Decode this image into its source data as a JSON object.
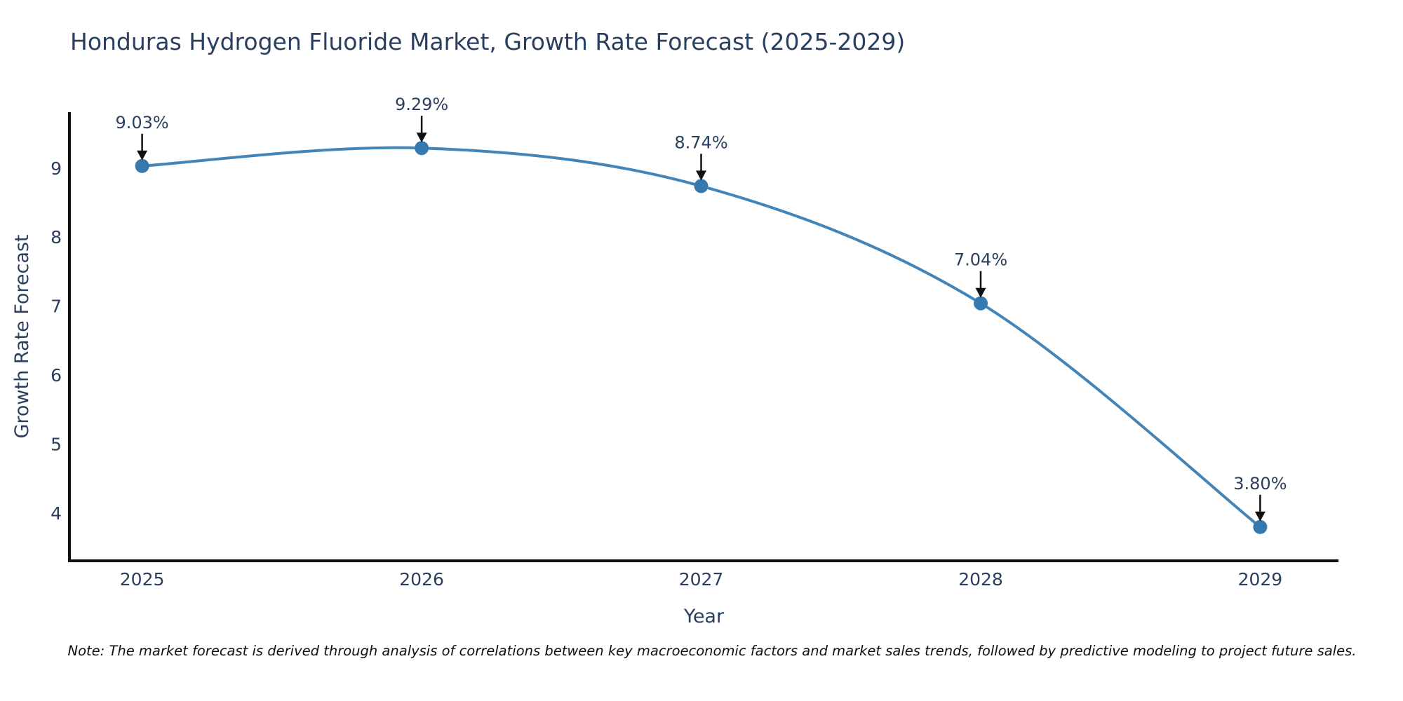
{
  "page": {
    "title": "Honduras Hydrogen Fluoride Market, Growth Rate Forecast (2025-2029)",
    "footnote": "Note: The market forecast is derived through analysis of correlations between key macroeconomic factors and market sales trends, followed by predictive modeling to project future sales."
  },
  "colors": {
    "line": "#4484b6",
    "marker": "#3579ae",
    "axis_line": "#111111",
    "axis_text": "#2a3f5f",
    "annotation_text": "#2a3f5f",
    "arrow": "#111111",
    "background": "#ffffff"
  },
  "chart_data": {
    "type": "line",
    "title": "Honduras Hydrogen Fluoride Market, Growth Rate Forecast (2025-2029)",
    "x": [
      2025,
      2026,
      2027,
      2028,
      2029
    ],
    "series": [
      {
        "name": "Growth Rate Forecast",
        "values": [
          9.03,
          9.29,
          8.74,
          7.04,
          3.8
        ]
      }
    ],
    "point_labels": [
      "9.03%",
      "9.29%",
      "8.74%",
      "7.04%",
      "3.80%"
    ],
    "xlabel": "Year",
    "ylabel": "Growth Rate Forecast",
    "xticks": [
      "2025",
      "2026",
      "2027",
      "2028",
      "2029"
    ],
    "yticks": [
      4,
      5,
      6,
      7,
      8,
      9
    ],
    "xlim": [
      2024.74,
      2029.28
    ],
    "ylim": [
      3.31,
      9.81
    ],
    "grid": false,
    "legend": false,
    "line_shape": "spline",
    "markers": true,
    "annotations": "value labels with down arrows above each point"
  }
}
